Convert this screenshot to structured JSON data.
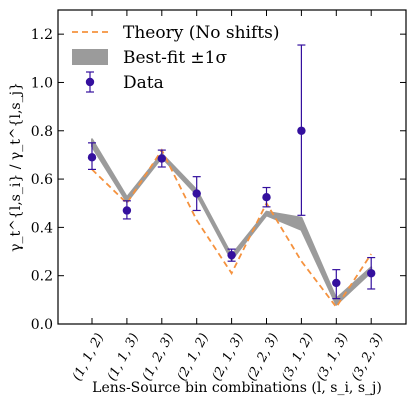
{
  "chart_data": {
    "type": "line",
    "categories": [
      "(1, 1, 2)",
      "(1, 1, 3)",
      "(1, 2, 3)",
      "(2, 1, 2)",
      "(2, 1, 3)",
      "(2, 2, 3)",
      "(3, 1, 2)",
      "(3, 1, 3)",
      "(3, 2, 3)"
    ],
    "xlabel": "Lens-Source bin combinations (l, s_i, s_j)",
    "ylabel": "γ_t^{l,s_i} / γ_t^{l,s_j}",
    "ylim": [
      0.0,
      1.3
    ],
    "yticks": [
      "0.0",
      "0.2",
      "0.4",
      "0.6",
      "0.8",
      "1.0",
      "1.2"
    ],
    "legend": {
      "placement": "top-left",
      "entries": [
        "Theory (No shifts)",
        "Best-fit ±1σ",
        "Data"
      ]
    },
    "colors": {
      "theory": "#f5923e",
      "band": "#9b9b9b",
      "data": "#34109e"
    },
    "series": [
      {
        "name": "Theory (No shifts)",
        "style": "dashed",
        "values": [
          0.64,
          0.5,
          0.72,
          0.43,
          0.21,
          0.5,
          0.26,
          0.07,
          0.29
        ]
      },
      {
        "name": "Best-fit ±1σ",
        "style": "band",
        "lower": [
          0.735,
          0.505,
          0.69,
          0.535,
          0.265,
          0.45,
          0.39,
          0.08,
          0.215
        ],
        "upper": [
          0.765,
          0.525,
          0.705,
          0.555,
          0.285,
          0.465,
          0.44,
          0.105,
          0.235
        ]
      },
      {
        "name": "Data",
        "style": "errorbar",
        "values": [
          0.69,
          0.47,
          0.685,
          0.54,
          0.285,
          0.525,
          0.8,
          0.17,
          0.21
        ],
        "err_low": [
          0.05,
          0.035,
          0.035,
          0.07,
          0.025,
          0.04,
          0.35,
          0.065,
          0.065
        ],
        "err_high": [
          0.06,
          0.04,
          0.035,
          0.07,
          0.025,
          0.04,
          0.355,
          0.055,
          0.065
        ]
      }
    ]
  }
}
